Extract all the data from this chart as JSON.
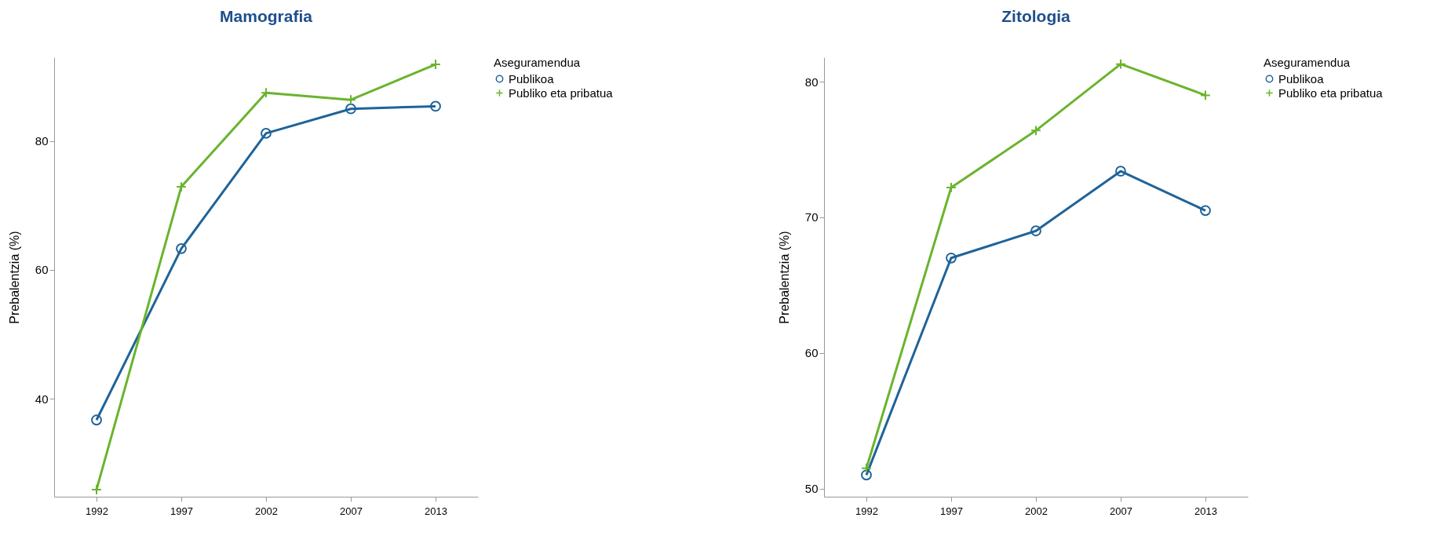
{
  "chart_data": [
    {
      "type": "line",
      "title": "Mamografia",
      "ylabel": "Prebalentzia (%)",
      "legend_title": "Aseguramendua",
      "legend": "right",
      "grid": false,
      "categories": [
        "1992",
        "1997",
        "2002",
        "2007",
        "2013"
      ],
      "ylim": [
        24.8,
        93
      ],
      "yticks": [
        40,
        60,
        80
      ],
      "series": [
        {
          "name": "Publikoa",
          "color": "#1f6399",
          "marker": "circle",
          "values": [
            36.7,
            63.3,
            81.2,
            85.0,
            85.4
          ]
        },
        {
          "name": "Publiko eta pribatua",
          "color": "#6ab42d",
          "marker": "cross",
          "values": [
            25.9,
            72.9,
            87.5,
            86.4,
            91.9
          ]
        }
      ]
    },
    {
      "type": "line",
      "title": "Zitologia",
      "ylabel": "Prebalentzia (%)",
      "legend_title": "Aseguramendua",
      "legend": "right",
      "grid": false,
      "categories": [
        "1992",
        "1997",
        "2002",
        "2007",
        "2013"
      ],
      "ylim": [
        49.4,
        81.8
      ],
      "yticks": [
        50,
        60,
        70,
        80
      ],
      "series": [
        {
          "name": "Publikoa",
          "color": "#1f6399",
          "marker": "circle",
          "values": [
            51.0,
            67.0,
            69.0,
            73.4,
            70.5
          ]
        },
        {
          "name": "Publiko eta pribatua",
          "color": "#6ab42d",
          "marker": "cross",
          "values": [
            51.5,
            72.2,
            76.4,
            81.3,
            79.0
          ]
        }
      ]
    }
  ]
}
